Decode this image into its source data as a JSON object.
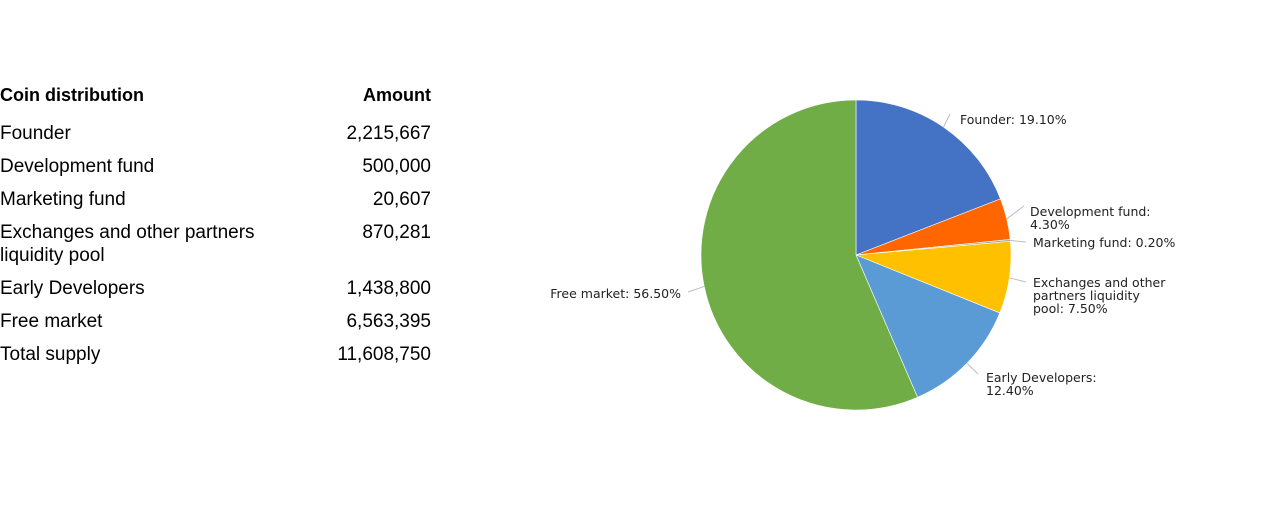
{
  "table": {
    "header": {
      "name": "Coin distribution",
      "amount": "Amount"
    },
    "rows": [
      {
        "name": "Founder",
        "amount": "2,215,667"
      },
      {
        "name": "Development fund",
        "amount": "500,000"
      },
      {
        "name": "Marketing fund",
        "amount": "20,607"
      },
      {
        "name": "Exchanges and other partners liquidity pool",
        "amount": "870,281"
      },
      {
        "name": "Early Developers",
        "amount": "1,438,800"
      },
      {
        "name": "Free market",
        "amount": "6,563,395"
      },
      {
        "name": "Total supply",
        "amount": "11,608,750"
      }
    ]
  },
  "chart_data": {
    "type": "pie",
    "slices": [
      {
        "label": "Founder",
        "value": 19.1,
        "label_text": [
          "Founder: 19.10%"
        ],
        "color": "#4472C4"
      },
      {
        "label": "Development fund",
        "value": 4.3,
        "label_text": [
          "Development fund:",
          "4.30%"
        ],
        "color": "#FF6600"
      },
      {
        "label": "Marketing fund",
        "value": 0.2,
        "label_text": [
          "Marketing fund: 0.20%"
        ],
        "color": "#A5A5A5"
      },
      {
        "label": "Exchanges and other partners liquidity pool",
        "value": 7.5,
        "label_text": [
          "Exchanges and other",
          "partners liquidity",
          "pool: 7.50%"
        ],
        "color": "#FFC000"
      },
      {
        "label": "Early Developers",
        "value": 12.4,
        "label_text": [
          "Early Developers:",
          "12.40%"
        ],
        "color": "#5B9BD5"
      },
      {
        "label": "Free market",
        "value": 56.5,
        "label_text": [
          "Free market: 56.50%"
        ],
        "color": "#70AD47"
      }
    ],
    "start_angle": "12 o'clock",
    "direction": "clockwise",
    "legend": "none"
  }
}
